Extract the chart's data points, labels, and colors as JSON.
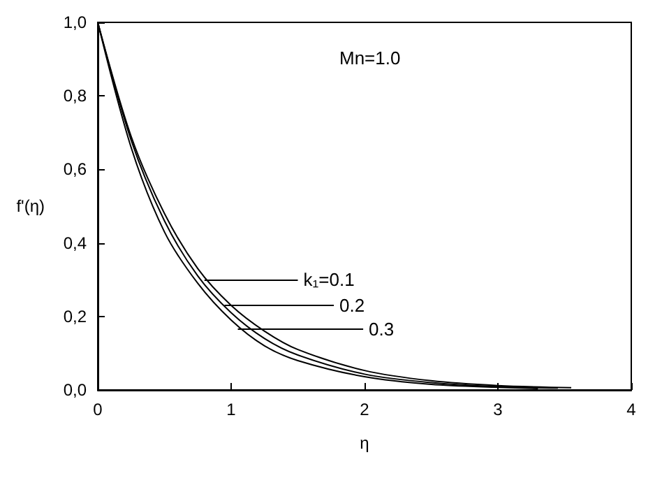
{
  "chart_data": {
    "type": "line",
    "xlabel": "η",
    "ylabel": "f'(η)",
    "series": [
      {
        "color": "#000000",
        "x": [
          0,
          0.25,
          0.5,
          0.75,
          1,
          1.25,
          1.5,
          2,
          2.5,
          3,
          3.55
        ],
        "values": [
          1,
          0.69,
          0.48,
          0.33,
          0.23,
          0.16,
          0.11,
          0.053,
          0.025,
          0.012,
          0.006
        ]
      },
      {
        "color": "#000000",
        "x": [
          0,
          0.25,
          0.5,
          0.75,
          1,
          1.25,
          1.5,
          2,
          2.5,
          3,
          3.45
        ],
        "values": [
          1,
          0.68,
          0.46,
          0.31,
          0.21,
          0.14,
          0.095,
          0.043,
          0.02,
          0.009,
          0.005
        ]
      },
      {
        "color": "#000000",
        "x": [
          0,
          0.25,
          0.5,
          0.75,
          1,
          1.25,
          1.5,
          2,
          2.5,
          3,
          3.3
        ],
        "values": [
          1,
          0.66,
          0.43,
          0.29,
          0.19,
          0.12,
          0.08,
          0.036,
          0.015,
          0.007,
          0.004
        ]
      }
    ],
    "annotations": [
      "Mn=1.0",
      {
        "text": "k₁=0.1",
        "x": 0.8,
        "y": 0.3
      },
      {
        "text": "0.2",
        "x": 0.95,
        "y": 0.23
      },
      {
        "text": "0.3",
        "x": 1.05,
        "y": 0.165
      }
    ],
    "xlim": [
      0,
      4
    ],
    "xticks": [
      0,
      1,
      2,
      3,
      4
    ],
    "ylim": [
      0,
      1
    ],
    "yticks": [
      {
        "value": 0,
        "label": "0,0"
      },
      {
        "value": 0.2,
        "label": "0,2"
      },
      {
        "value": 0.4,
        "label": "0,4"
      },
      {
        "value": 0.6,
        "label": "0,6"
      },
      {
        "value": 0.8,
        "label": "0,8"
      },
      {
        "value": 1,
        "label": "1,0"
      }
    ],
    "grid": false,
    "marker": "none",
    "line_style": "solid"
  }
}
